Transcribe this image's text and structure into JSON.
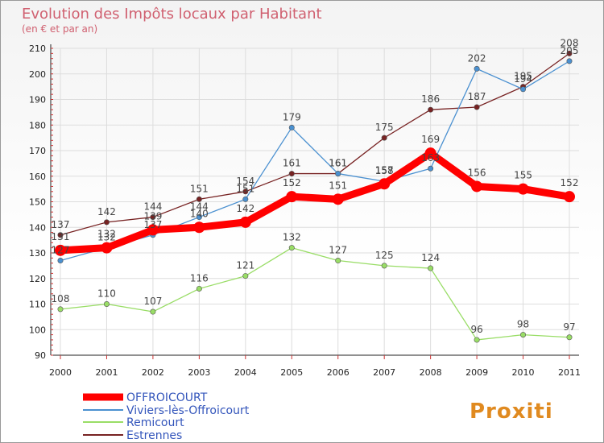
{
  "chart_data": {
    "type": "line",
    "title": "Evolution des Impôts locaux par Habitant",
    "subtitle": "(en € et par an)",
    "xlabel": "",
    "ylabel": "",
    "categories": [
      "2000",
      "2001",
      "2002",
      "2003",
      "2004",
      "2005",
      "2006",
      "2007",
      "2008",
      "2009",
      "2010",
      "2011"
    ],
    "ylim": [
      90,
      210
    ],
    "yticks": [
      90,
      100,
      110,
      120,
      130,
      140,
      150,
      160,
      170,
      180,
      190,
      200,
      210
    ],
    "grid": true,
    "legend": "bottom-left",
    "series": [
      {
        "name": "OFFROICOURT",
        "color": "#ff0000",
        "values": [
          131,
          132,
          139,
          140,
          142,
          152,
          151,
          157,
          169,
          156,
          155,
          152
        ]
      },
      {
        "name": "Viviers-lès-Offroicourt",
        "color": "#4a90d0",
        "values": [
          127,
          132,
          137,
          144,
          151,
          179,
          161,
          158,
          163,
          202,
          194,
          205
        ]
      },
      {
        "name": "Remicourt",
        "color": "#99dd66",
        "values": [
          108,
          110,
          107,
          116,
          121,
          132,
          127,
          125,
          124,
          96,
          98,
          97
        ]
      },
      {
        "name": "Estrennes",
        "color": "#772222",
        "values": [
          137,
          142,
          144,
          151,
          154,
          161,
          161,
          175,
          186,
          187,
          195,
          208
        ]
      }
    ]
  },
  "watermark": "Proxiti"
}
